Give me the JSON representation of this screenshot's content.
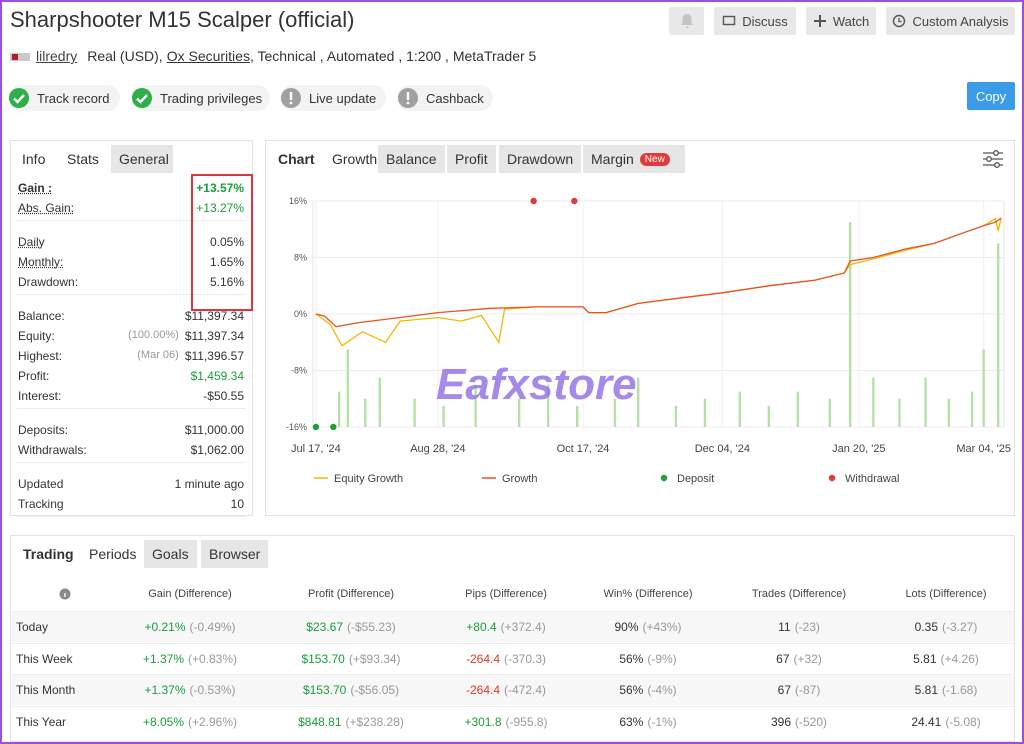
{
  "header": {
    "title": "Sharpshooter M15 Scalper (official)",
    "buttons": [
      "Discuss",
      "Watch",
      "Custom Analysis"
    ],
    "copy": "Copy"
  },
  "account": {
    "user": "lilredry",
    "currency": "Real (USD),",
    "broker": "Ox Securities",
    "details": ", Technical , Automated , 1:200 , MetaTrader 5"
  },
  "badges": [
    {
      "label": "Track record",
      "status": "ok"
    },
    {
      "label": "Trading privileges",
      "status": "ok"
    },
    {
      "label": "Live update",
      "status": "warn"
    },
    {
      "label": "Cashback",
      "status": "warn"
    }
  ],
  "stats": {
    "tabs": [
      "Info",
      "Stats",
      "General"
    ],
    "groups": [
      [
        {
          "label": "Gain :",
          "value": "+13.57%",
          "color": "#1a9c3a",
          "bold": true,
          "underline": true
        },
        {
          "label": "Abs. Gain:",
          "value": "+13.27%",
          "color": "#1a9c3a",
          "underline": true
        }
      ],
      [
        {
          "label": "Daily",
          "value": "0.05%",
          "underline": true
        },
        {
          "label": "Monthly:",
          "value": "1.65%",
          "underline": true
        },
        {
          "label": "Drawdown:",
          "value": "5.16%"
        }
      ],
      [
        {
          "label": "Balance:",
          "value": "$11,397.34"
        },
        {
          "label": "Equity:",
          "note": "(100.00%)",
          "value": "$11,397.34"
        },
        {
          "label": "Highest:",
          "note": "(Mar 06)",
          "value": "$11,396.57"
        },
        {
          "label": "Profit:",
          "value": "$1,459.34",
          "color": "#1a9c3a"
        },
        {
          "label": "Interest:",
          "value": "-$50.55"
        }
      ],
      [
        {
          "label": "Deposits:",
          "value": "$11,000.00"
        },
        {
          "label": "Withdrawals:",
          "value": "$1,062.00"
        }
      ],
      [
        {
          "label": "Updated",
          "value": "1 minute ago"
        },
        {
          "label": "Tracking",
          "value": "10"
        }
      ]
    ]
  },
  "chart_tabs": {
    "tabs": [
      "Chart",
      "Growth",
      "Balance",
      "Profit",
      "Drawdown",
      "Margin"
    ],
    "badge": "New"
  },
  "watermark": "Eafxstore",
  "chart_data": {
    "type": "line",
    "xlim": [
      "2024-07-16",
      "2025-03-11"
    ],
    "xticks": [
      {
        "value": "2024-07-17",
        "label": "Jul 17, '24"
      },
      {
        "value": "2024-08-28",
        "label": "Aug 28, '24"
      },
      {
        "value": "2024-10-17",
        "label": "Oct 17, '24"
      },
      {
        "value": "2024-12-04",
        "label": "Dec 04, '24"
      },
      {
        "value": "2025-01-20",
        "label": "Jan 20, '25"
      },
      {
        "value": "2025-03-04",
        "label": "Mar 04, '25"
      }
    ],
    "ylim": [
      -16,
      16
    ],
    "yticks": [
      {
        "value": 16,
        "label": "16%"
      },
      {
        "value": 8,
        "label": "8%"
      },
      {
        "value": 0,
        "label": "0%"
      },
      {
        "value": -8,
        "label": "-8%"
      },
      {
        "value": -16,
        "label": "-16%"
      }
    ],
    "grid": true,
    "bars": {
      "color": "#b7e0a8",
      "x": [
        "2024-07-25",
        "2024-07-28",
        "2024-08-03",
        "2024-08-08",
        "2024-08-20",
        "2024-08-30",
        "2024-09-10",
        "2024-09-25",
        "2024-10-05",
        "2024-10-15",
        "2024-10-28",
        "2024-11-05",
        "2024-11-18",
        "2024-11-28",
        "2024-12-10",
        "2024-12-20",
        "2024-12-30",
        "2025-01-10",
        "2025-01-17",
        "2025-01-25",
        "2025-02-03",
        "2025-02-12",
        "2025-02-20",
        "2025-02-28",
        "2025-03-04",
        "2025-03-09"
      ],
      "values": [
        -11,
        -5,
        -12,
        -9,
        -12,
        -13,
        -10,
        -12,
        -10,
        -13,
        -12,
        -9,
        -13,
        -12,
        -11,
        -13,
        -11,
        -12,
        13,
        -9,
        -12,
        -9,
        -12,
        -11,
        -5,
        10
      ]
    },
    "series": [
      {
        "name": "Equity Growth",
        "color": "#f2b705",
        "marker": "line",
        "x": [
          "2024-07-17",
          "2024-07-22",
          "2024-07-26",
          "2024-08-02",
          "2024-08-10",
          "2024-08-15",
          "2024-08-28",
          "2024-09-05",
          "2024-09-12",
          "2024-09-18",
          "2024-09-20",
          "2024-10-01",
          "2024-10-17",
          "2024-10-19",
          "2024-10-25",
          "2024-11-05",
          "2024-11-20",
          "2024-12-04",
          "2024-12-20",
          "2025-01-05",
          "2025-01-15",
          "2025-01-17",
          "2025-01-25",
          "2025-02-05",
          "2025-02-15",
          "2025-02-25",
          "2025-03-04",
          "2025-03-08",
          "2025-03-09",
          "2025-03-10"
        ],
        "values": [
          0,
          -1.5,
          -4.5,
          -2.5,
          -4,
          -1,
          -0.5,
          -1,
          -0.2,
          -4,
          0.7,
          1,
          1,
          0.2,
          0.2,
          1.5,
          2.3,
          3,
          4,
          4.8,
          5.8,
          7,
          7.8,
          9,
          10,
          11.5,
          12.5,
          13.5,
          11.8,
          13.57
        ]
      },
      {
        "name": "Growth",
        "color": "#e2552b",
        "marker": "line",
        "x": [
          "2024-07-17",
          "2024-07-20",
          "2024-07-24",
          "2024-08-01",
          "2024-08-15",
          "2024-08-28",
          "2024-09-15",
          "2024-10-01",
          "2024-10-17",
          "2024-10-19",
          "2024-10-25",
          "2024-11-05",
          "2024-11-20",
          "2024-12-04",
          "2024-12-20",
          "2025-01-05",
          "2025-01-15",
          "2025-01-17",
          "2025-01-25",
          "2025-02-05",
          "2025-02-15",
          "2025-02-25",
          "2025-03-04",
          "2025-03-08",
          "2025-03-10"
        ],
        "values": [
          0,
          -0.3,
          -1.8,
          -1.2,
          -0.5,
          0.2,
          0.8,
          1,
          1,
          0.2,
          0.2,
          1.5,
          2.3,
          3,
          4,
          4.8,
          5.8,
          7.5,
          8,
          9.2,
          10,
          11.5,
          12.5,
          13,
          13.57
        ]
      },
      {
        "name": "Deposit",
        "color": "#1f9e3c",
        "marker": "dot",
        "x": [
          "2024-07-17",
          "2024-07-23"
        ],
        "values": [
          -16,
          -16
        ]
      },
      {
        "name": "Withdrawal",
        "color": "#e03a3a",
        "marker": "dot",
        "x": [
          "2024-09-30",
          "2024-10-14"
        ],
        "values": [
          16,
          16
        ]
      }
    ]
  },
  "periods": {
    "tabs": [
      "Trading",
      "Periods",
      "Goals",
      "Browser"
    ],
    "columns": [
      {
        "label": "Gain (Difference)",
        "colored": true
      },
      {
        "label": "Profit (Difference)",
        "colored": true
      },
      {
        "label": "Pips (Difference)",
        "colored": true
      },
      {
        "label": "Win% (Difference)",
        "colored": false
      },
      {
        "label": "Trades (Difference)",
        "colored": false
      },
      {
        "label": "Lots (Difference)",
        "colored": false
      }
    ],
    "rows": [
      {
        "label": "Today",
        "cells": [
          {
            "value": "+0.21%",
            "diff": "(-0.49%)"
          },
          {
            "value": "$23.67",
            "diff": "(-$55.23)"
          },
          {
            "value": "+80.4",
            "diff": "(+372.4)"
          },
          {
            "value": "90%",
            "diff": "(+43%)"
          },
          {
            "value": "11",
            "diff": "(-23)"
          },
          {
            "value": "0.35",
            "diff": "(-3.27)"
          }
        ]
      },
      {
        "label": "This Week",
        "cells": [
          {
            "value": "+1.37%",
            "diff": "(+0.83%)"
          },
          {
            "value": "$153.70",
            "diff": "(+$93.34)"
          },
          {
            "value": "-264.4",
            "diff": "(-370.3)"
          },
          {
            "value": "56%",
            "diff": "(-9%)"
          },
          {
            "value": "67",
            "diff": "(+32)"
          },
          {
            "value": "5.81",
            "diff": "(+4.26)"
          }
        ]
      },
      {
        "label": "This Month",
        "cells": [
          {
            "value": "+1.37%",
            "diff": "(-0.53%)"
          },
          {
            "value": "$153.70",
            "diff": "(-$56.05)"
          },
          {
            "value": "-264.4",
            "diff": "(-472.4)"
          },
          {
            "value": "56%",
            "diff": "(-4%)"
          },
          {
            "value": "67",
            "diff": "(-87)"
          },
          {
            "value": "5.81",
            "diff": "(-1.68)"
          }
        ]
      },
      {
        "label": "This Year",
        "cells": [
          {
            "value": "+8.05%",
            "diff": "(+2.96%)"
          },
          {
            "value": "$848.81",
            "diff": "(+$238.28)"
          },
          {
            "value": "+301.8",
            "diff": "(-955.8)"
          },
          {
            "value": "63%",
            "diff": "(-1%)"
          },
          {
            "value": "396",
            "diff": "(-520)"
          },
          {
            "value": "24.41",
            "diff": "(-5.08)"
          }
        ]
      }
    ]
  }
}
